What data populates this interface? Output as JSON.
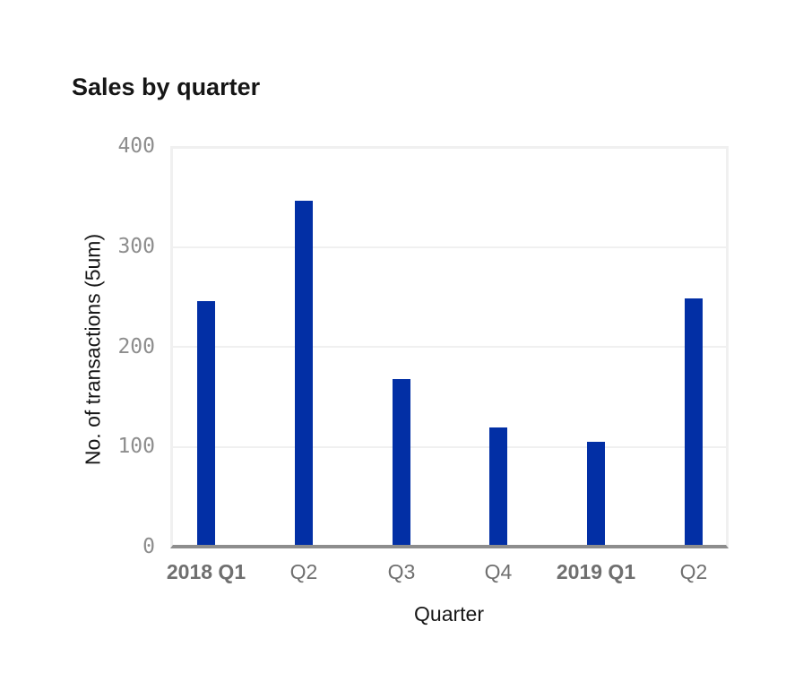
{
  "chart": {
    "title": "Sales by quarter",
    "x_axis_title": "Quarter",
    "y_axis_title": "No. of transactions (5um)"
  },
  "chart_data": {
    "type": "bar",
    "title": "Sales by quarter",
    "xlabel": "Quarter",
    "ylabel": "No. of transactions (5um)",
    "categories": [
      "2018 Q1",
      "Q2",
      "Q3",
      "Q4",
      "2019 Q1",
      "Q2"
    ],
    "values": [
      245,
      345,
      167,
      119,
      105,
      248
    ],
    "bold_categories": [
      "2018 Q1",
      "2019 Q1"
    ],
    "yticks": [
      400,
      300,
      200,
      100,
      0
    ],
    "ylim": [
      0,
      400
    ],
    "grid": "horizontal",
    "legend_position": "none",
    "bar_color": "#022fa5",
    "colors": {
      "title_text": "#161616",
      "axis_title_text": "#161616",
      "y_tick_text": "#8d8d8d",
      "x_tick_text": "#6f6f6f",
      "gridline": "#f0f0f0",
      "axis_line": "#8d8d8d",
      "background": "#ffffff"
    }
  }
}
